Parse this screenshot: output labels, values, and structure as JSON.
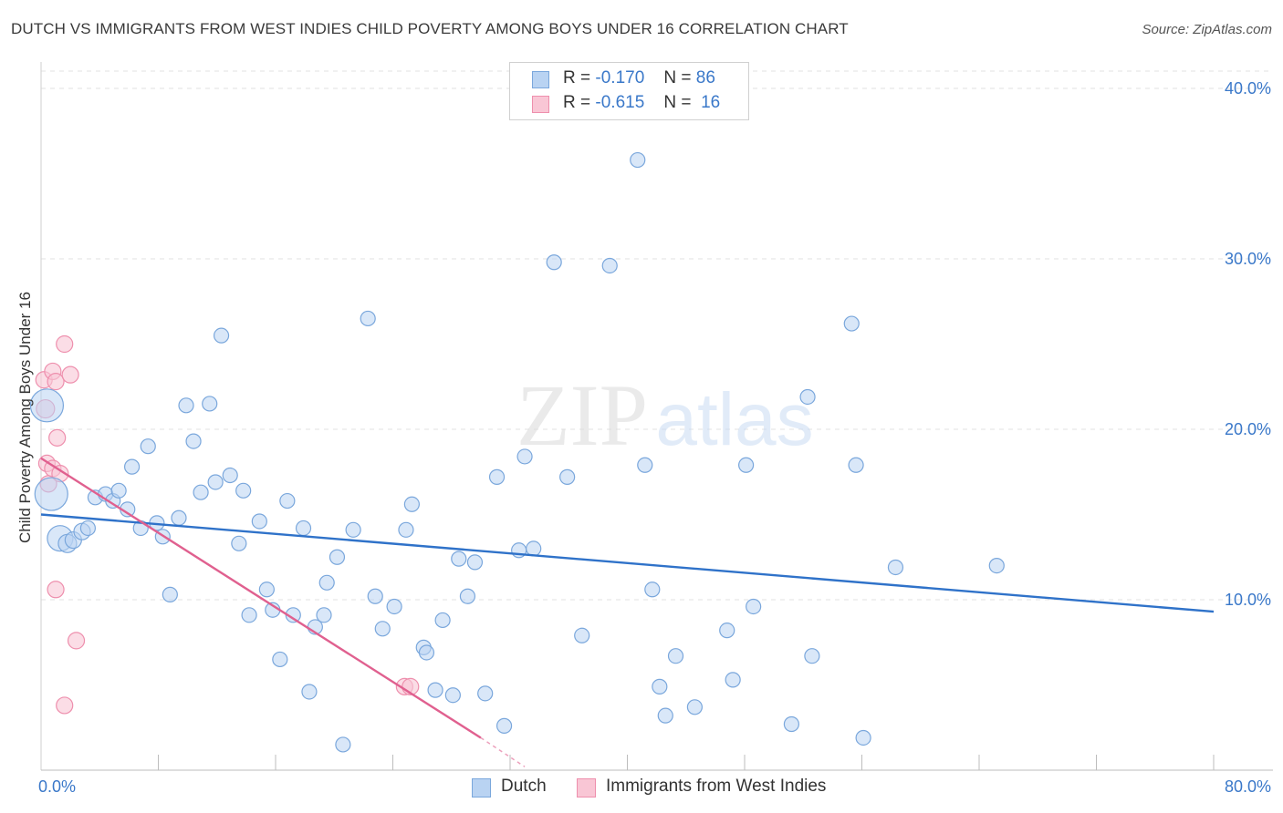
{
  "title": "DUTCH VS IMMIGRANTS FROM WEST INDIES CHILD POVERTY AMONG BOYS UNDER 16 CORRELATION CHART",
  "source": "Source: ZipAtlas.com",
  "watermark": {
    "zip": "ZIP",
    "atlas": "atlas"
  },
  "legend": {
    "r_label": "R =",
    "n_label": "N =",
    "rows": [
      {
        "r": "-0.170",
        "n": "86"
      },
      {
        "r": "-0.615",
        "n": "16"
      }
    ]
  },
  "colors": {
    "dutch_fill": "#b9d3f2",
    "dutch_edge": "#7aa7dc",
    "dutch_line": "#2f72c9",
    "wi_fill": "#f9c6d5",
    "wi_edge": "#ee8fad",
    "wi_line": "#e0608f",
    "tick_text": "#3a78c9"
  },
  "chart_data": {
    "type": "scatter",
    "title": "DUTCH VS IMMIGRANTS FROM WEST INDIES CHILD POVERTY AMONG BOYS UNDER 16 CORRELATION CHART",
    "xlabel": "",
    "ylabel": "Child Poverty Among Boys Under 16",
    "xlim": [
      0,
      80
    ],
    "ylim": [
      0,
      40
    ],
    "x_tick_labels": [
      "0.0%",
      "80.0%"
    ],
    "y_ticks": [
      10,
      20,
      30,
      40
    ],
    "y_tick_labels": [
      "10.0%",
      "20.0%",
      "30.0%",
      "40.0%"
    ],
    "grid": true,
    "legend_position": "top-center",
    "series": [
      {
        "name": "Dutch",
        "r": -0.17,
        "n": 86,
        "trend": {
          "x": [
            0,
            80
          ],
          "y": [
            15.0,
            9.3
          ]
        },
        "points": [
          [
            0.4,
            21.4,
            18
          ],
          [
            0.7,
            16.2,
            18
          ],
          [
            1.3,
            13.6,
            14
          ],
          [
            1.8,
            13.3,
            10
          ],
          [
            2.2,
            13.5,
            9
          ],
          [
            2.8,
            14.0,
            9
          ],
          [
            3.2,
            14.2,
            8
          ],
          [
            3.7,
            16.0,
            8
          ],
          [
            4.4,
            16.2,
            8
          ],
          [
            4.9,
            15.8,
            8
          ],
          [
            5.3,
            16.4,
            8
          ],
          [
            5.9,
            15.3,
            8
          ],
          [
            6.2,
            17.8,
            8
          ],
          [
            6.8,
            14.2,
            8
          ],
          [
            7.3,
            19.0,
            8
          ],
          [
            7.9,
            14.5,
            8
          ],
          [
            8.3,
            13.7,
            8
          ],
          [
            8.8,
            10.3,
            8
          ],
          [
            9.4,
            14.8,
            8
          ],
          [
            9.9,
            21.4,
            8
          ],
          [
            10.4,
            19.3,
            8
          ],
          [
            10.9,
            16.3,
            8
          ],
          [
            11.5,
            21.5,
            8
          ],
          [
            11.9,
            16.9,
            8
          ],
          [
            12.3,
            25.5,
            8
          ],
          [
            12.9,
            17.3,
            8
          ],
          [
            13.5,
            13.3,
            8
          ],
          [
            13.8,
            16.4,
            8
          ],
          [
            14.2,
            9.1,
            8
          ],
          [
            14.9,
            14.6,
            8
          ],
          [
            15.4,
            10.6,
            8
          ],
          [
            15.8,
            9.4,
            8
          ],
          [
            16.3,
            6.5,
            8
          ],
          [
            16.8,
            15.8,
            8
          ],
          [
            17.2,
            9.1,
            8
          ],
          [
            17.9,
            14.2,
            8
          ],
          [
            18.3,
            4.6,
            8
          ],
          [
            18.7,
            8.4,
            8
          ],
          [
            19.3,
            9.1,
            8
          ],
          [
            19.5,
            11.0,
            8
          ],
          [
            20.2,
            12.5,
            8
          ],
          [
            20.6,
            1.5,
            8
          ],
          [
            21.3,
            14.1,
            8
          ],
          [
            22.3,
            26.5,
            8
          ],
          [
            22.8,
            10.2,
            8
          ],
          [
            23.3,
            8.3,
            8
          ],
          [
            24.1,
            9.6,
            8
          ],
          [
            24.9,
            14.1,
            8
          ],
          [
            25.3,
            15.6,
            8
          ],
          [
            26.1,
            7.2,
            8
          ],
          [
            26.3,
            6.9,
            8
          ],
          [
            26.9,
            4.7,
            8
          ],
          [
            27.4,
            8.8,
            8
          ],
          [
            28.1,
            4.4,
            8
          ],
          [
            28.5,
            12.4,
            8
          ],
          [
            29.1,
            10.2,
            8
          ],
          [
            29.6,
            12.2,
            8
          ],
          [
            30.3,
            4.5,
            8
          ],
          [
            31.1,
            17.2,
            8
          ],
          [
            31.6,
            2.6,
            8
          ],
          [
            32.6,
            12.9,
            8
          ],
          [
            33.0,
            18.4,
            8
          ],
          [
            33.6,
            13.0,
            8
          ],
          [
            35.0,
            29.8,
            8
          ],
          [
            35.9,
            17.2,
            8
          ],
          [
            36.9,
            7.9,
            8
          ],
          [
            38.8,
            29.6,
            8
          ],
          [
            40.7,
            35.8,
            8
          ],
          [
            41.2,
            17.9,
            8
          ],
          [
            41.7,
            10.6,
            8
          ],
          [
            42.2,
            4.9,
            8
          ],
          [
            42.6,
            3.2,
            8
          ],
          [
            43.3,
            6.7,
            8
          ],
          [
            44.6,
            3.7,
            8
          ],
          [
            46.8,
            8.2,
            8
          ],
          [
            47.2,
            5.3,
            8
          ],
          [
            48.1,
            17.9,
            8
          ],
          [
            48.6,
            9.6,
            8
          ],
          [
            51.2,
            2.7,
            8
          ],
          [
            52.3,
            21.9,
            8
          ],
          [
            52.6,
            6.7,
            8
          ],
          [
            55.3,
            26.2,
            8
          ],
          [
            55.6,
            17.9,
            8
          ],
          [
            56.1,
            1.9,
            8
          ],
          [
            58.3,
            11.9,
            8
          ],
          [
            65.2,
            12.0,
            8
          ]
        ]
      },
      {
        "name": "Immigrants from West Indies",
        "r": -0.615,
        "n": 16,
        "trend": {
          "x": [
            0,
            30
          ],
          "y": [
            18.3,
            1.9
          ]
        },
        "trend_dashed": {
          "x": [
            30,
            33
          ],
          "y": [
            1.9,
            0.2
          ]
        },
        "points": [
          [
            0.2,
            22.9,
            9
          ],
          [
            0.3,
            21.2,
            10
          ],
          [
            0.4,
            18.0,
            9
          ],
          [
            0.5,
            16.8,
            9
          ],
          [
            0.8,
            23.4,
            9
          ],
          [
            0.8,
            17.7,
            9
          ],
          [
            1.0,
            22.8,
            9
          ],
          [
            1.0,
            10.6,
            9
          ],
          [
            1.1,
            19.5,
            9
          ],
          [
            1.3,
            17.4,
            9
          ],
          [
            1.6,
            25.0,
            9
          ],
          [
            1.6,
            3.8,
            9
          ],
          [
            2.0,
            23.2,
            9
          ],
          [
            2.4,
            7.6,
            9
          ],
          [
            24.8,
            4.9,
            9
          ],
          [
            25.2,
            4.9,
            9
          ]
        ]
      }
    ]
  },
  "bottom_legend": [
    "Dutch",
    "Immigrants from West Indies"
  ]
}
